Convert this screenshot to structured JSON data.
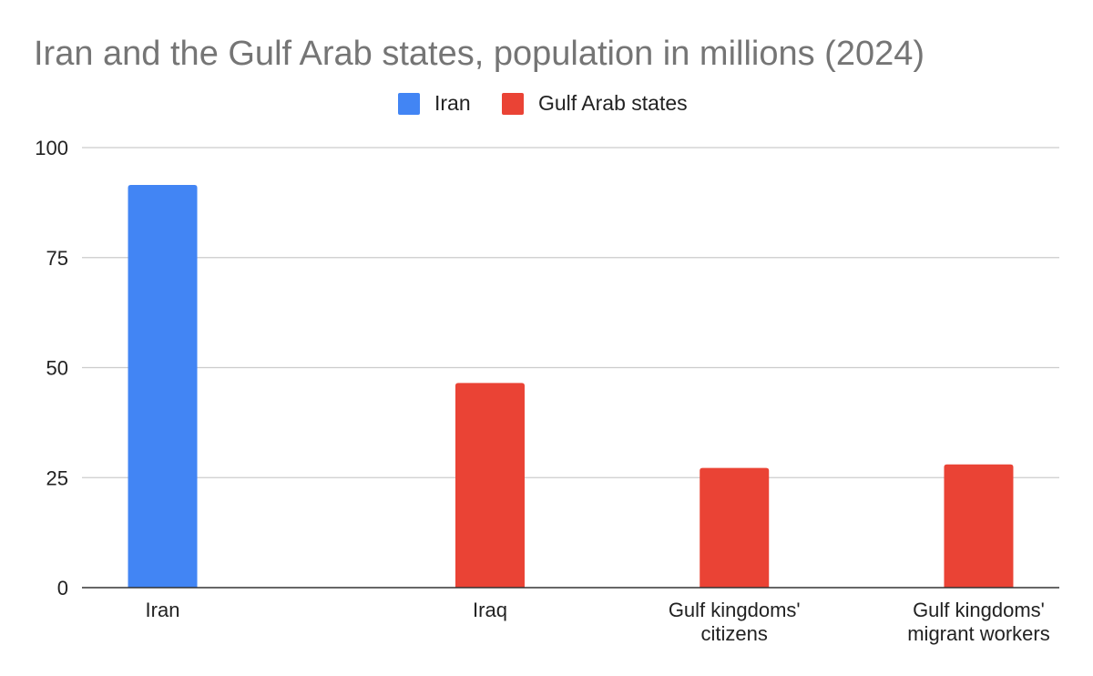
{
  "chart_data": {
    "type": "bar",
    "title": "Iran and the Gulf Arab states, population in millions (2024)",
    "xlabel": "",
    "ylabel": "",
    "ylim": [
      0,
      100
    ],
    "yticks": [
      0,
      25,
      50,
      75,
      100
    ],
    "grid": true,
    "legend_position": "top-center",
    "categories": [
      [
        "Iran"
      ],
      [
        "Iraq"
      ],
      [
        "Gulf kingdoms'",
        "citizens"
      ],
      [
        "Gulf kingdoms'",
        "migrant workers"
      ]
    ],
    "series": [
      {
        "name": "Iran",
        "color": "#4285f4",
        "values": [
          91.5,
          null,
          null,
          null
        ]
      },
      {
        "name": "Gulf Arab states",
        "color": "#ea4335",
        "values": [
          null,
          46.5,
          27.2,
          28.0
        ]
      }
    ]
  }
}
